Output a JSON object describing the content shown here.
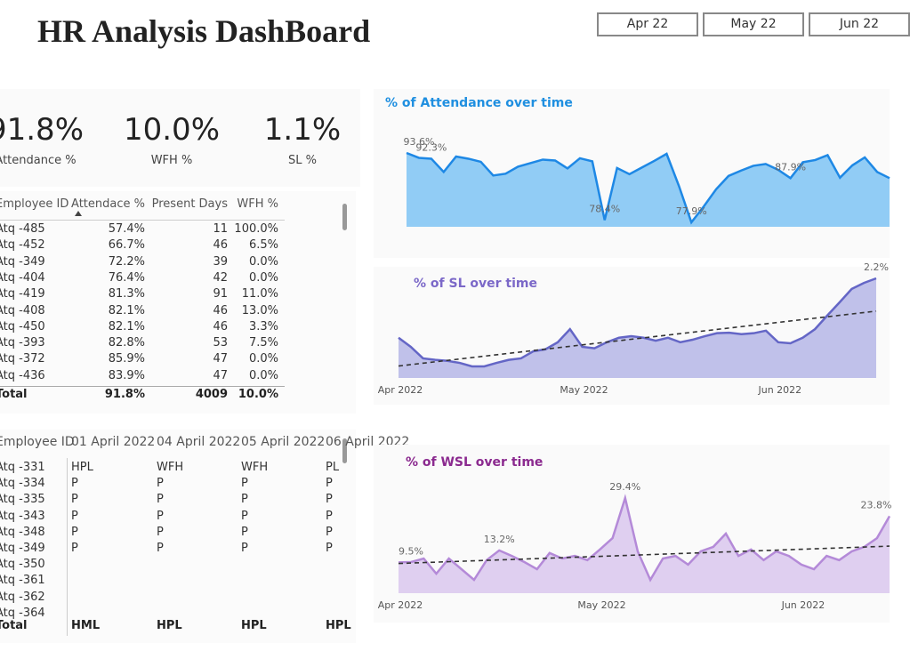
{
  "header": {
    "title": "HR Analysis DashBoard",
    "slicer": [
      "Apr 22",
      "May 22",
      "Jun 22"
    ]
  },
  "kpis": [
    {
      "value": "91.8%",
      "label": "Attendance %"
    },
    {
      "value": "10.0%",
      "label": "WFH %"
    },
    {
      "value": "1.1%",
      "label": "SL %"
    }
  ],
  "table1": {
    "columns": [
      "Employee ID",
      "Attendace %",
      "Present Days",
      "WFH %"
    ],
    "rows": [
      [
        "Atq -485",
        "57.4%",
        "11",
        "100.0%"
      ],
      [
        "Atq -452",
        "66.7%",
        "46",
        "6.5%"
      ],
      [
        "Atq -349",
        "72.2%",
        "39",
        "0.0%"
      ],
      [
        "Atq -404",
        "76.4%",
        "42",
        "0.0%"
      ],
      [
        "Atq -419",
        "81.3%",
        "91",
        "11.0%"
      ],
      [
        "Atq -408",
        "82.1%",
        "46",
        "13.0%"
      ],
      [
        "Atq -450",
        "82.1%",
        "46",
        "3.3%"
      ],
      [
        "Atq -393",
        "82.8%",
        "53",
        "7.5%"
      ],
      [
        "Atq -372",
        "85.9%",
        "47",
        "0.0%"
      ],
      [
        "Atq -436",
        "83.9%",
        "47",
        "0.0%"
      ]
    ],
    "total": [
      "Total",
      "91.8%",
      "4009",
      "10.0%"
    ]
  },
  "table2": {
    "columns": [
      "Employee ID",
      "01 April 2022",
      "04 April 2022",
      "05 April 2022",
      "06 April 2022"
    ],
    "rows": [
      [
        "Atq -331",
        "HPL",
        "WFH",
        "WFH",
        "PL"
      ],
      [
        "Atq -334",
        "P",
        "P",
        "P",
        "P"
      ],
      [
        "Atq -335",
        "P",
        "P",
        "P",
        "P"
      ],
      [
        "Atq -343",
        "P",
        "P",
        "P",
        "P"
      ],
      [
        "Atq -348",
        "P",
        "P",
        "P",
        "P"
      ],
      [
        "Atq -349",
        "P",
        "P",
        "P",
        "P"
      ],
      [
        "Atq -350",
        null,
        null,
        null,
        null
      ],
      [
        "Atq -361",
        null,
        null,
        null,
        null
      ],
      [
        "Atq -362",
        null,
        null,
        null,
        null
      ],
      [
        "Atq -364",
        null,
        null,
        null,
        null
      ]
    ],
    "total": [
      "Total",
      "HML",
      "HPL",
      "HPL",
      "HPL"
    ]
  },
  "chart_data": [
    {
      "type": "area",
      "title": "% of Attendance over time",
      "color": "#1e88e5",
      "fill": "#85c6f4",
      "values": [
        93.6,
        92.5,
        92.3,
        89.3,
        92.8,
        92.3,
        91.6,
        88.5,
        88.9,
        90.5,
        91.3,
        92.1,
        91.9,
        90.1,
        92.4,
        91.7,
        78.4,
        90.2,
        88.8,
        90.3,
        91.8,
        93.4,
        86.1,
        77.9,
        81.5,
        85.4,
        88.4,
        89.6,
        90.7,
        91.1,
        89.8,
        87.9,
        91.5,
        92.0,
        93.1,
        88.0,
        90.8,
        92.6,
        89.3,
        87.9
      ],
      "value_labels": [
        "93.6%",
        null,
        "92.3%",
        null,
        null,
        null,
        null,
        null,
        null,
        null,
        null,
        null,
        null,
        null,
        null,
        null,
        "78.4%",
        null,
        null,
        null,
        null,
        null,
        null,
        "77.9%",
        null,
        null,
        null,
        null,
        null,
        null,
        null,
        "87.9%",
        null,
        null,
        null,
        null,
        null,
        null,
        null,
        null
      ]
    },
    {
      "type": "area",
      "title": "% of SL over time",
      "color": "#6466c6",
      "fill": "#b9bae8",
      "trend_line": true,
      "values": [
        1.02,
        0.84,
        0.61,
        0.58,
        0.56,
        0.52,
        0.45,
        0.45,
        0.52,
        0.58,
        0.61,
        0.75,
        0.79,
        0.93,
        1.19,
        0.84,
        0.81,
        0.93,
        1.02,
        1.05,
        1.02,
        0.96,
        1.02,
        0.93,
        0.98,
        1.05,
        1.11,
        1.12,
        1.09,
        1.11,
        1.16,
        0.93,
        0.91,
        1.02,
        1.19,
        1.46,
        1.72,
        1.99,
        2.11,
        2.2
      ],
      "value_labels": [
        null,
        null,
        null,
        null,
        null,
        null,
        null,
        null,
        null,
        null,
        null,
        null,
        null,
        null,
        null,
        null,
        null,
        null,
        null,
        null,
        null,
        null,
        null,
        null,
        null,
        null,
        null,
        null,
        null,
        null,
        null,
        null,
        null,
        null,
        null,
        null,
        null,
        null,
        null,
        "2.2%"
      ],
      "xticks": [
        {
          "value": 0,
          "label": "Apr 2022"
        },
        {
          "value": 15,
          "label": "May 2022"
        },
        {
          "value": 31,
          "label": "Jun 2022"
        }
      ]
    },
    {
      "type": "area",
      "title": "% of WSL over time",
      "color": "#b48ad8",
      "fill": "#dccaee",
      "trend_line": true,
      "values": [
        9.5,
        9.6,
        10.7,
        6.0,
        10.7,
        7.4,
        4.1,
        10.2,
        13.2,
        11.5,
        9.6,
        7.4,
        12.4,
        10.7,
        11.5,
        10.2,
        13.5,
        17.0,
        29.4,
        12.9,
        4.1,
        10.7,
        11.5,
        8.8,
        12.9,
        14.3,
        18.4,
        11.5,
        13.5,
        10.2,
        12.9,
        11.5,
        8.8,
        7.4,
        11.5,
        10.2,
        12.9,
        14.3,
        17.0,
        23.8
      ],
      "value_labels": [
        "9.5%",
        null,
        null,
        null,
        null,
        null,
        null,
        null,
        "13.2%",
        null,
        null,
        null,
        null,
        null,
        null,
        null,
        null,
        null,
        "29.4%",
        null,
        null,
        null,
        null,
        null,
        null,
        null,
        null,
        null,
        null,
        null,
        null,
        null,
        null,
        null,
        null,
        null,
        null,
        null,
        null,
        "23.8%"
      ],
      "xticks": [
        {
          "value": 0,
          "label": "Apr 2022"
        },
        {
          "value": 16,
          "label": "May 2022"
        },
        {
          "value": 32,
          "label": "Jun 2022"
        }
      ]
    }
  ]
}
